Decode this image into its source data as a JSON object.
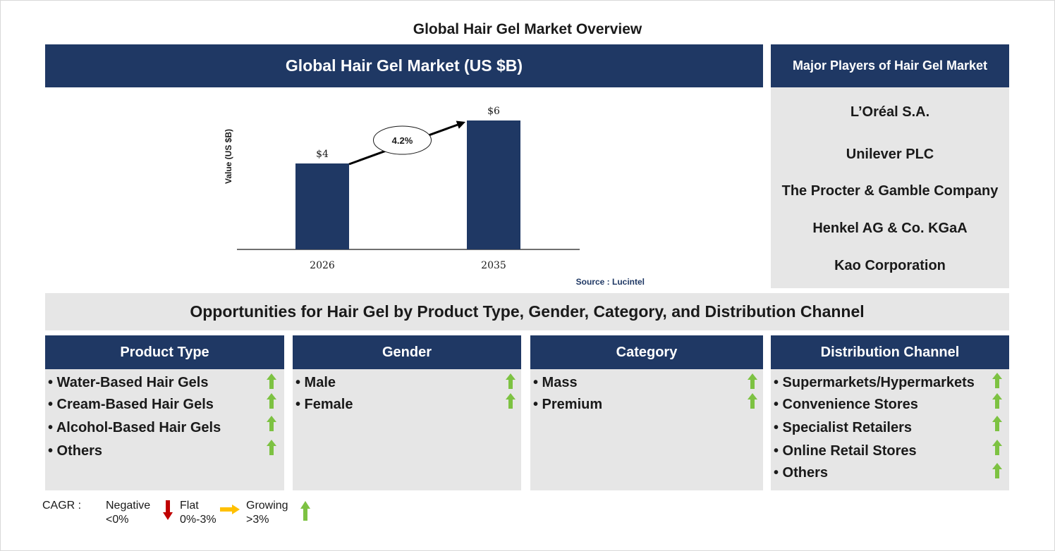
{
  "title": "Global Hair Gel Market Overview",
  "chart_header": "Global Hair Gel Market (US $B)",
  "chart_data": {
    "type": "bar",
    "categories": [
      "2026",
      "2035"
    ],
    "values": [
      4,
      6
    ],
    "data_labels": [
      "$4",
      "$6"
    ],
    "ylabel": "Value (US $B)",
    "xlabel": "",
    "cagr_label": "4.2%",
    "source": "Source : Lucintel",
    "bar_color": "#1f3864"
  },
  "players": {
    "header": "Major Players of Hair Gel Market",
    "items": [
      "L’Oréal S.A.",
      "Unilever PLC",
      "The Procter & Gamble Company",
      "Henkel AG & Co. KGaA",
      "Kao Corporation"
    ]
  },
  "opportunities_title": "Opportunities for Hair Gel by Product Type, Gender, Category, and Distribution Channel",
  "segments": [
    {
      "title": "Product Type",
      "items": [
        "• Water-Based Hair Gels",
        "• Cream-Based Hair Gels",
        "• Alcohol-Based Hair Gels",
        "• Others"
      ]
    },
    {
      "title": "Gender",
      "items": [
        "• Male",
        "• Female"
      ]
    },
    {
      "title": "Category",
      "items": [
        "• Mass",
        "• Premium"
      ]
    },
    {
      "title": "Distribution Channel",
      "items": [
        "• Supermarkets/Hypermarkets",
        "• Convenience Stores",
        "• Specialist Retailers",
        "• Online Retail Stores",
        "• Others"
      ]
    }
  ],
  "legend": {
    "label": "CAGR :",
    "negative": [
      "Negative",
      "<0%"
    ],
    "flat": [
      "Flat",
      "0%-3%"
    ],
    "growing": [
      "Growing",
      ">3%"
    ]
  },
  "colors": {
    "navy": "#1f3864",
    "panel_grey": "#e6e6e6",
    "growing_arrow": "#7dc242",
    "negative_arrow": "#c00000",
    "flat_arrow": "#ffc000"
  }
}
